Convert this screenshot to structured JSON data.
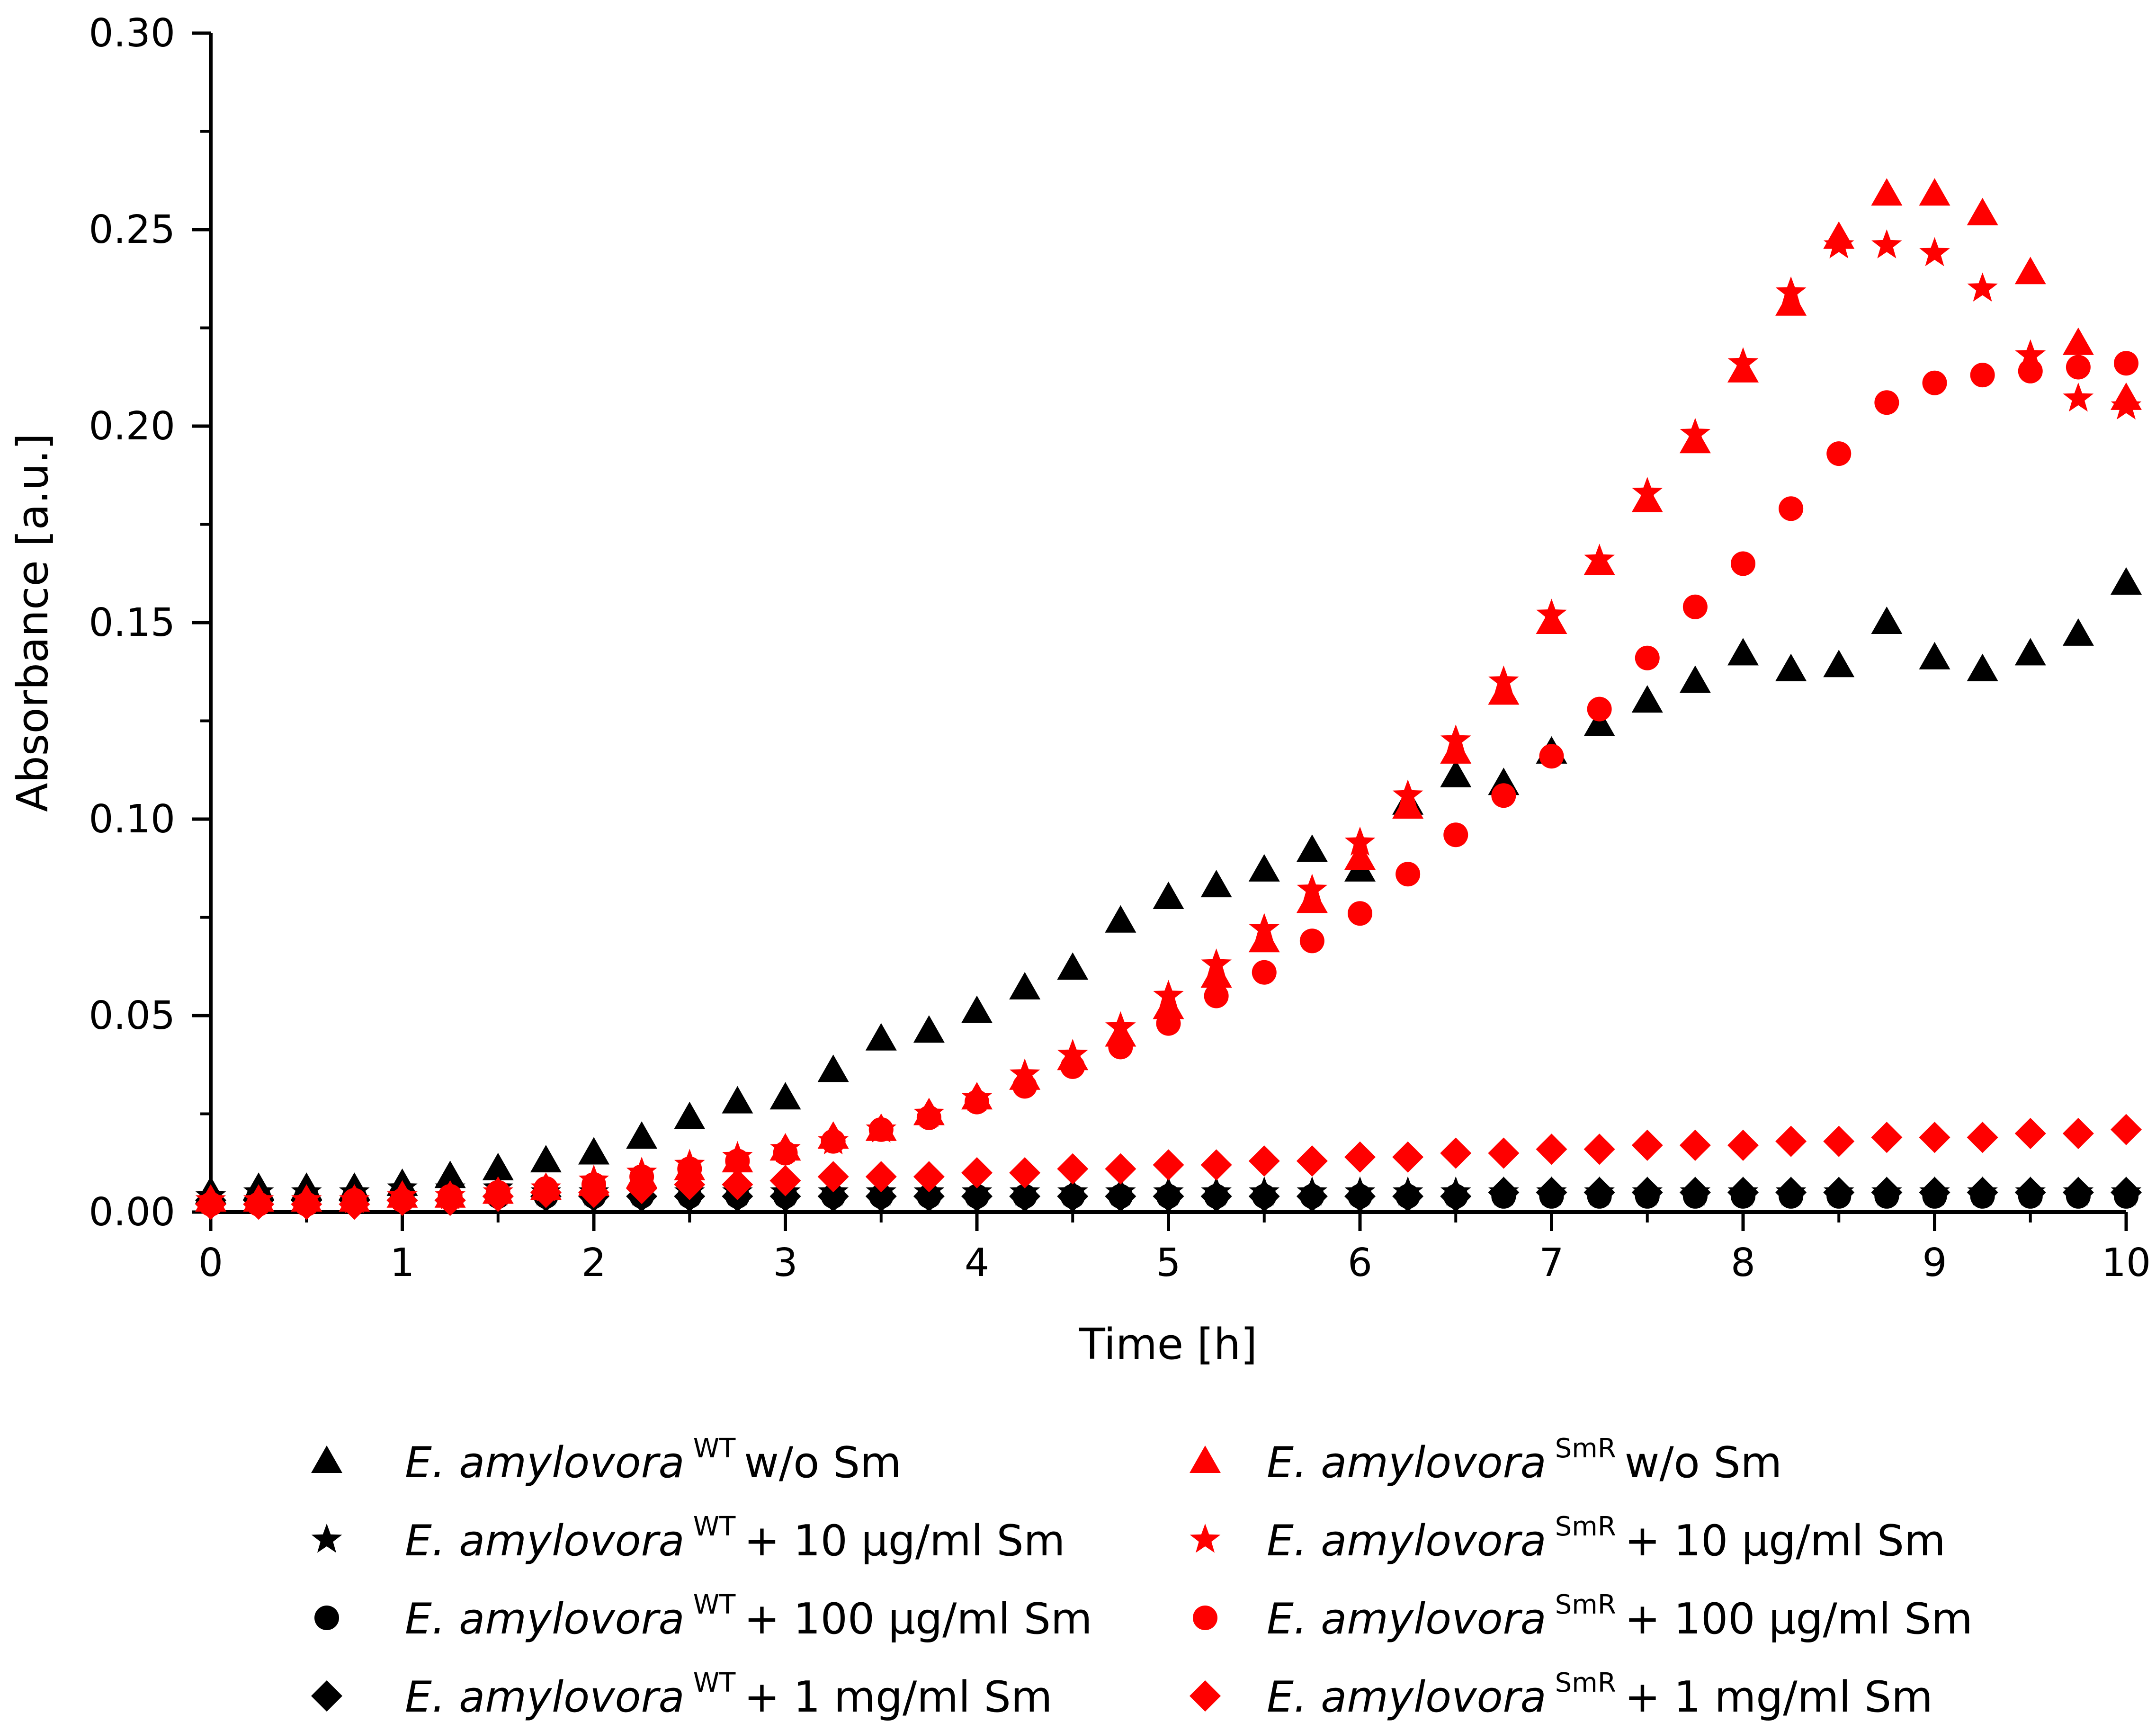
{
  "chart_data": {
    "type": "scatter",
    "xlabel": "Time [h]",
    "ylabel": "Absorbance [a.u.]",
    "xlim": [
      0,
      10
    ],
    "ylim": [
      0,
      0.3
    ],
    "xticks": [
      "0",
      "1",
      "2",
      "3",
      "4",
      "5",
      "6",
      "7",
      "8",
      "9",
      "10"
    ],
    "yticks": [
      "0.00",
      "0.05",
      "0.10",
      "0.15",
      "0.20",
      "0.25",
      "0.30"
    ],
    "x": [
      0,
      0.25,
      0.5,
      0.75,
      1,
      1.25,
      1.5,
      1.75,
      2,
      2.25,
      2.5,
      2.75,
      3,
      3.25,
      3.5,
      3.75,
      4,
      4.25,
      4.5,
      4.75,
      5,
      5.25,
      5.5,
      5.75,
      6,
      6.25,
      6.5,
      6.75,
      7,
      7.25,
      7.5,
      7.75,
      8,
      8.25,
      8.5,
      8.75,
      9,
      9.25,
      9.5,
      9.75,
      10
    ],
    "series": [
      {
        "name": "wt-wo",
        "organism": "E. amylovora",
        "strain": "WT",
        "treatment": "w/o Sm",
        "marker": "triangle",
        "color": "#000000",
        "values": [
          0.005,
          0.006,
          0.006,
          0.006,
          0.007,
          0.009,
          0.011,
          0.013,
          0.015,
          0.019,
          0.024,
          0.028,
          0.029,
          0.036,
          0.044,
          0.046,
          0.051,
          0.057,
          0.062,
          0.074,
          0.08,
          0.083,
          0.087,
          0.092,
          0.087,
          0.104,
          0.111,
          0.109,
          0.117,
          0.124,
          0.13,
          0.135,
          0.142,
          0.138,
          0.139,
          0.15,
          0.141,
          0.138,
          0.142,
          0.147,
          0.16
        ]
      },
      {
        "name": "wt-10",
        "organism": "E. amylovora",
        "strain": "WT",
        "treatment": "+ 10 µg/ml Sm",
        "marker": "star",
        "color": "#000000",
        "values": [
          0.004,
          0.005,
          0.005,
          0.005,
          0.006,
          0.006,
          0.006,
          0.005,
          0.005,
          0.005,
          0.005,
          0.005,
          0.005,
          0.005,
          0.005,
          0.005,
          0.005,
          0.005,
          0.005,
          0.005,
          0.005,
          0.005,
          0.005,
          0.005,
          0.005,
          0.005,
          0.005,
          0.005,
          0.005,
          0.005,
          0.005,
          0.005,
          0.005,
          0.005,
          0.005,
          0.005,
          0.005,
          0.005,
          0.005,
          0.005,
          0.005
        ]
      },
      {
        "name": "wt-100",
        "organism": "E. amylovora",
        "strain": "WT",
        "treatment": "+ 100 µg/ml Sm",
        "marker": "circle",
        "color": "#000000",
        "values": [
          0.003,
          0.004,
          0.004,
          0.004,
          0.004,
          0.004,
          0.004,
          0.004,
          0.004,
          0.004,
          0.004,
          0.004,
          0.004,
          0.004,
          0.004,
          0.004,
          0.004,
          0.004,
          0.004,
          0.004,
          0.004,
          0.004,
          0.004,
          0.004,
          0.004,
          0.004,
          0.004,
          0.004,
          0.004,
          0.004,
          0.004,
          0.004,
          0.004,
          0.004,
          0.004,
          0.004,
          0.004,
          0.004,
          0.004,
          0.004,
          0.004
        ]
      },
      {
        "name": "wt-1mg",
        "organism": "E. amylovora",
        "strain": "WT",
        "treatment": "+ 1 mg/ml Sm",
        "marker": "diamond",
        "color": "#000000",
        "values": [
          0.003,
          0.003,
          0.003,
          0.003,
          0.003,
          0.003,
          0.004,
          0.004,
          0.004,
          0.004,
          0.004,
          0.004,
          0.004,
          0.004,
          0.004,
          0.004,
          0.004,
          0.004,
          0.004,
          0.004,
          0.004,
          0.004,
          0.004,
          0.004,
          0.004,
          0.004,
          0.004,
          0.005,
          0.005,
          0.005,
          0.005,
          0.005,
          0.005,
          0.005,
          0.005,
          0.005,
          0.005,
          0.005,
          0.005,
          0.005,
          0.005
        ]
      },
      {
        "name": "smr-wo",
        "organism": "E. amylovora",
        "strain": "SmR",
        "treatment": "w/o Sm",
        "marker": "triangle",
        "color": "#ff0000",
        "values": [
          0.003,
          0.003,
          0.003,
          0.003,
          0.004,
          0.004,
          0.005,
          0.006,
          0.007,
          0.009,
          0.011,
          0.013,
          0.016,
          0.019,
          0.021,
          0.025,
          0.029,
          0.034,
          0.039,
          0.045,
          0.052,
          0.06,
          0.069,
          0.079,
          0.09,
          0.103,
          0.117,
          0.132,
          0.15,
          0.165,
          0.181,
          0.196,
          0.214,
          0.231,
          0.248,
          0.259,
          0.259,
          0.254,
          0.239,
          0.221,
          0.207
        ]
      },
      {
        "name": "smr-10",
        "organism": "E. amylovora",
        "strain": "SmR",
        "treatment": "+ 10 µg/ml Sm",
        "marker": "star",
        "color": "#ff0000",
        "values": [
          0.003,
          0.003,
          0.003,
          0.003,
          0.004,
          0.004,
          0.005,
          0.006,
          0.008,
          0.01,
          0.012,
          0.014,
          0.016,
          0.018,
          0.021,
          0.025,
          0.029,
          0.035,
          0.04,
          0.047,
          0.055,
          0.063,
          0.072,
          0.082,
          0.094,
          0.106,
          0.12,
          0.135,
          0.152,
          0.166,
          0.183,
          0.198,
          0.216,
          0.234,
          0.246,
          0.246,
          0.244,
          0.235,
          0.218,
          0.207,
          0.205
        ]
      },
      {
        "name": "smr-100",
        "organism": "E. amylovora",
        "strain": "SmR",
        "treatment": "+ 100 µg/ml Sm",
        "marker": "circle",
        "color": "#ff0000",
        "values": [
          0.002,
          0.002,
          0.002,
          0.003,
          0.003,
          0.004,
          0.005,
          0.006,
          0.007,
          0.009,
          0.011,
          0.013,
          0.015,
          0.018,
          0.021,
          0.024,
          0.028,
          0.032,
          0.037,
          0.042,
          0.048,
          0.055,
          0.061,
          0.069,
          0.076,
          0.086,
          0.096,
          0.106,
          0.116,
          0.128,
          0.141,
          0.154,
          0.165,
          0.179,
          0.193,
          0.206,
          0.211,
          0.213,
          0.214,
          0.215,
          0.216
        ]
      },
      {
        "name": "smr-1mg",
        "organism": "E. amylovora",
        "strain": "SmR",
        "treatment": "+ 1 mg/ml Sm",
        "marker": "diamond",
        "color": "#ff0000",
        "values": [
          0.002,
          0.002,
          0.002,
          0.002,
          0.003,
          0.003,
          0.004,
          0.005,
          0.005,
          0.006,
          0.007,
          0.007,
          0.008,
          0.009,
          0.009,
          0.009,
          0.01,
          0.01,
          0.011,
          0.011,
          0.012,
          0.012,
          0.013,
          0.013,
          0.014,
          0.014,
          0.015,
          0.015,
          0.016,
          0.016,
          0.017,
          0.017,
          0.017,
          0.018,
          0.018,
          0.019,
          0.019,
          0.019,
          0.02,
          0.02,
          0.021
        ]
      }
    ],
    "legend_position": "bottom"
  }
}
